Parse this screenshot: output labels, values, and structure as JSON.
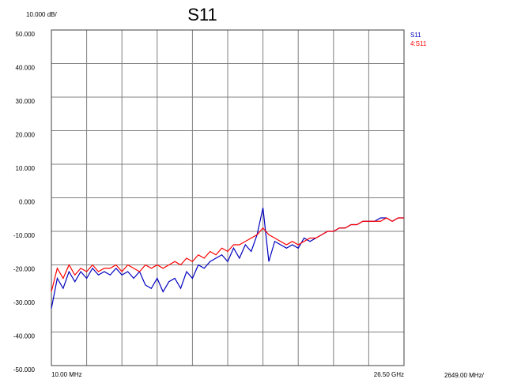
{
  "chart_data": {
    "type": "line",
    "title": "S11",
    "y_division": {
      "value": 10,
      "label": "10.000 dB/"
    },
    "x_division": {
      "value": 2649,
      "label": "2649.00 MHz/"
    },
    "xlim": [
      10,
      26500
    ],
    "xticks": [
      {
        "value": 10,
        "label": "10.00 MHz"
      },
      {
        "value": 26500,
        "label": "26.50 GHz"
      }
    ],
    "ylim": [
      -50,
      50
    ],
    "yticks": [
      {
        "value": 50,
        "label": "50.000"
      },
      {
        "value": 40,
        "label": "40.000"
      },
      {
        "value": 30,
        "label": "30.000"
      },
      {
        "value": 20,
        "label": "20.000"
      },
      {
        "value": 10,
        "label": "10.000"
      },
      {
        "value": 0,
        "label": "0.000"
      },
      {
        "value": -10,
        "label": "-10.000"
      },
      {
        "value": -20,
        "label": "-20.000"
      },
      {
        "value": -30,
        "label": "-30.000"
      },
      {
        "value": -40,
        "label": "-40.000"
      },
      {
        "value": -50,
        "label": "-50.000"
      }
    ],
    "grid": true,
    "legend": "top-right",
    "x": [
      10,
      451.5,
      893,
      1334.5,
      1776,
      2217.5,
      2659,
      3100.5,
      3542,
      3983.5,
      4425,
      4866.5,
      5308,
      5749.5,
      6191,
      6632.5,
      7074,
      7515.5,
      7957,
      8398.5,
      8840,
      9281.5,
      9723,
      10164.5,
      10606,
      11047.5,
      11489,
      11930.5,
      12372,
      12813.5,
      13255,
      13696.5,
      14138,
      14579.5,
      15021,
      15462.5,
      15904,
      16345.5,
      16787,
      17228.5,
      17670,
      18111.5,
      18553,
      18994.5,
      19436,
      19877.5,
      20319,
      20760.5,
      21202,
      21643.5,
      22085,
      22526.5,
      22968,
      23409.5,
      23851,
      24292.5,
      24734,
      25175.5,
      25617,
      26058.5,
      26500
    ],
    "series": [
      {
        "name": "S11",
        "color": "#0000c0",
        "values": [
          -33,
          -24,
          -27,
          -22,
          -25,
          -22,
          -24,
          -21,
          -23,
          -22,
          -23,
          -21,
          -23,
          -22,
          -24,
          -22,
          -26,
          -27,
          -24,
          -28,
          -25,
          -24,
          -27,
          -22,
          -24,
          -20,
          -21,
          -19,
          -18,
          -17,
          -19,
          -15,
          -18,
          -14,
          -16,
          -11,
          -3,
          -19,
          -13,
          -14,
          -15,
          -14,
          -15,
          -12,
          -13,
          -12,
          -11,
          -10,
          -10,
          -9,
          -9,
          -8,
          -8,
          -7,
          -7,
          -7,
          -6,
          -6,
          -7,
          -6,
          -6
        ]
      },
      {
        "name": "4:S11",
        "color": "#ff0000",
        "values": [
          -28,
          -21,
          -24,
          -20,
          -23,
          -21,
          -22,
          -20,
          -22,
          -21,
          -21,
          -20,
          -22,
          -20,
          -21,
          -22,
          -20,
          -21,
          -20,
          -21,
          -20,
          -19,
          -20,
          -18,
          -19,
          -17,
          -18,
          -16,
          -17,
          -15,
          -16,
          -14,
          -14,
          -13,
          -12,
          -11,
          -9,
          -11,
          -12,
          -13,
          -14,
          -13,
          -14,
          -13,
          -12,
          -12,
          -11,
          -10,
          -10,
          -9,
          -9,
          -8,
          -8,
          -7,
          -7,
          -7,
          -7,
          -6,
          -7,
          -6,
          -6
        ]
      }
    ]
  }
}
